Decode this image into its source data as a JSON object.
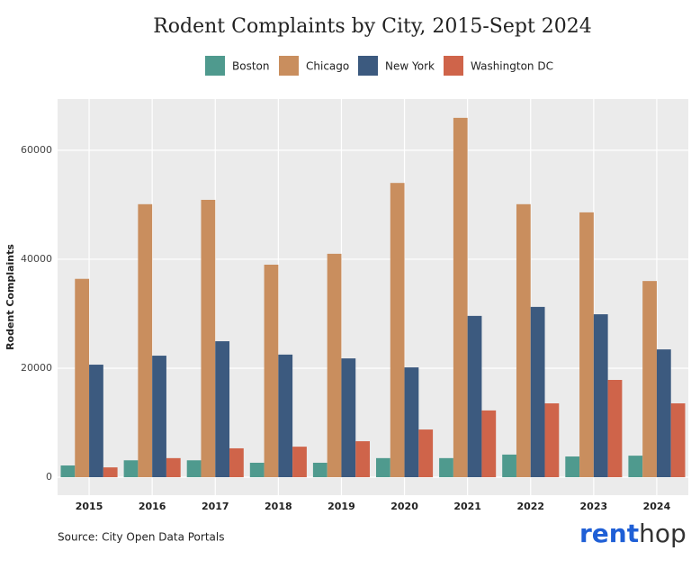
{
  "chart_data": {
    "type": "bar",
    "title": "Rodent Complaints by City, 2015-Sept 2024",
    "y_label": "Rodent Complaints",
    "source": "Source: City Open Data Portals",
    "logo": {
      "first": "rent",
      "second": "hop"
    },
    "categories": [
      "2015",
      "2016",
      "2017",
      "2018",
      "2019",
      "2020",
      "2021",
      "2022",
      "2023",
      "2024"
    ],
    "series": [
      {
        "name": "Boston",
        "color": "#4f9a8e",
        "values": [
          2150,
          3100,
          3100,
          2650,
          2650,
          3500,
          3500,
          4150,
          3800,
          3950
        ]
      },
      {
        "name": "Chicago",
        "color": "#c98e5e",
        "values": [
          36400,
          50100,
          50900,
          39000,
          41000,
          54000,
          65950,
          50100,
          48600,
          36000
        ]
      },
      {
        "name": "New York",
        "color": "#3c5a7f",
        "values": [
          20650,
          22300,
          24950,
          22500,
          21800,
          20150,
          29600,
          31250,
          29900,
          23450
        ]
      },
      {
        "name": "Washington DC",
        "color": "#cf644a",
        "values": [
          1800,
          3500,
          5300,
          5600,
          6600,
          8750,
          12250,
          13550,
          17850,
          13550
        ]
      }
    ],
    "ylim": [
      -3300,
      69400
    ],
    "yticks": [
      0,
      20000,
      40000,
      60000
    ],
    "grid": true,
    "legend": "top"
  }
}
